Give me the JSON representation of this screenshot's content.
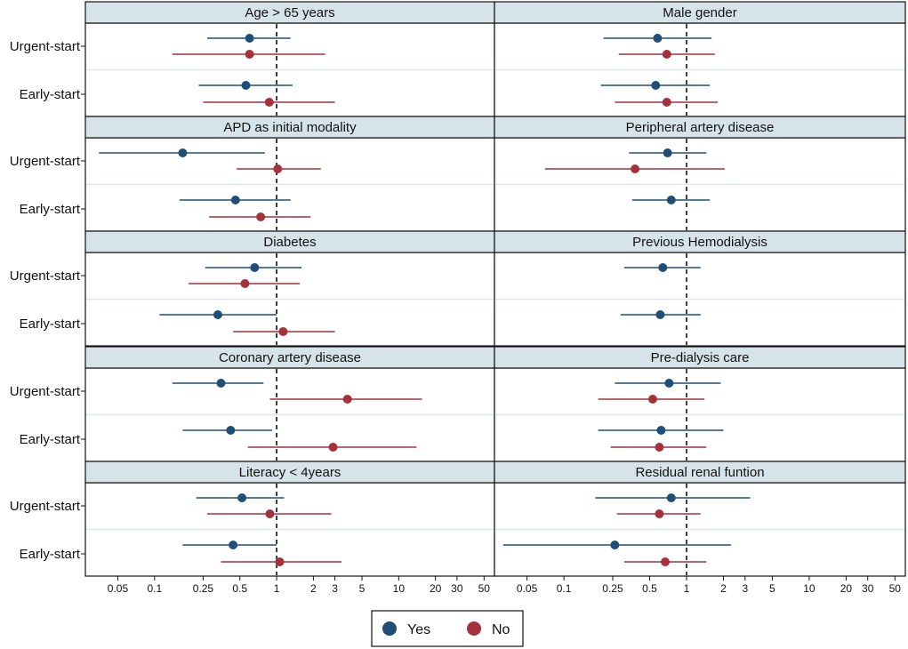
{
  "chart_data": {
    "type": "forest",
    "x_scale": "log",
    "xlim": [
      0.03,
      55
    ],
    "reference_line": 1,
    "x_ticks": [
      {
        "v": 0.05,
        "label": "0.05"
      },
      {
        "v": 0.1,
        "label": "0.1"
      },
      {
        "v": 0.25,
        "label": "0.25"
      },
      {
        "v": 0.5,
        "label": "0.5"
      },
      {
        "v": 1,
        "label": "1"
      },
      {
        "v": 2,
        "label": "2"
      },
      {
        "v": 3,
        "label": "3"
      },
      {
        "v": 5,
        "label": "5"
      },
      {
        "v": 10,
        "label": "10"
      },
      {
        "v": 20,
        "label": "20"
      },
      {
        "v": 30,
        "label": "30"
      },
      {
        "v": 50,
        "label": "50"
      }
    ],
    "row_labels": [
      "Urgent-start",
      "Early-start"
    ],
    "legend": [
      {
        "key": "yes",
        "label": "Yes",
        "color": "#1f4e79"
      },
      {
        "key": "no",
        "label": "No",
        "color": "#a5313a"
      }
    ],
    "panels": [
      {
        "title": "Age > 65 years",
        "rows": [
          {
            "group": "Urgent-start",
            "estimates": [
              {
                "key": "yes",
                "est": 0.6,
                "lo": 0.27,
                "hi": 1.3
              },
              {
                "key": "no",
                "est": 0.6,
                "lo": 0.14,
                "hi": 2.5
              }
            ]
          },
          {
            "group": "Early-start",
            "estimates": [
              {
                "key": "yes",
                "est": 0.56,
                "lo": 0.23,
                "hi": 1.35
              },
              {
                "key": "no",
                "est": 0.87,
                "lo": 0.25,
                "hi": 3.0
              }
            ]
          }
        ]
      },
      {
        "title": "Male gender",
        "rows": [
          {
            "group": "Urgent-start",
            "estimates": [
              {
                "key": "yes",
                "est": 0.58,
                "lo": 0.21,
                "hi": 1.6
              },
              {
                "key": "no",
                "est": 0.69,
                "lo": 0.28,
                "hi": 1.7
              }
            ]
          },
          {
            "group": "Early-start",
            "estimates": [
              {
                "key": "yes",
                "est": 0.56,
                "lo": 0.2,
                "hi": 1.55
              },
              {
                "key": "no",
                "est": 0.69,
                "lo": 0.26,
                "hi": 1.8
              }
            ]
          }
        ]
      },
      {
        "title": "APD as initial modality",
        "rows": [
          {
            "group": "Urgent-start",
            "estimates": [
              {
                "key": "yes",
                "est": 0.17,
                "lo": 0.035,
                "hi": 0.8
              },
              {
                "key": "no",
                "est": 1.02,
                "lo": 0.47,
                "hi": 2.3
              }
            ]
          },
          {
            "group": "Early-start",
            "estimates": [
              {
                "key": "yes",
                "est": 0.46,
                "lo": 0.16,
                "hi": 1.3
              },
              {
                "key": "no",
                "est": 0.74,
                "lo": 0.28,
                "hi": 1.9
              }
            ]
          }
        ]
      },
      {
        "title": "Peripheral artery disease",
        "rows": [
          {
            "group": "Urgent-start",
            "estimates": [
              {
                "key": "yes",
                "est": 0.7,
                "lo": 0.34,
                "hi": 1.45
              },
              {
                "key": "no",
                "est": 0.38,
                "lo": 0.07,
                "hi": 2.05
              }
            ]
          },
          {
            "group": "Early-start",
            "estimates": [
              {
                "key": "yes",
                "est": 0.75,
                "lo": 0.36,
                "hi": 1.55
              }
            ]
          }
        ]
      },
      {
        "title": "Diabetes",
        "rows": [
          {
            "group": "Urgent-start",
            "estimates": [
              {
                "key": "yes",
                "est": 0.66,
                "lo": 0.26,
                "hi": 1.6
              },
              {
                "key": "no",
                "est": 0.55,
                "lo": 0.19,
                "hi": 1.55
              }
            ]
          },
          {
            "group": "Early-start",
            "estimates": [
              {
                "key": "yes",
                "est": 0.33,
                "lo": 0.11,
                "hi": 1.0
              },
              {
                "key": "no",
                "est": 1.13,
                "lo": 0.44,
                "hi": 3.0
              }
            ]
          }
        ]
      },
      {
        "title": "Previous Hemodialysis",
        "rows": [
          {
            "group": "Urgent-start",
            "estimates": [
              {
                "key": "yes",
                "est": 0.64,
                "lo": 0.31,
                "hi": 1.3
              }
            ]
          },
          {
            "group": "Early-start",
            "estimates": [
              {
                "key": "yes",
                "est": 0.61,
                "lo": 0.29,
                "hi": 1.3
              }
            ]
          }
        ]
      },
      {
        "title": "Coronary artery disease",
        "rows": [
          {
            "group": "Urgent-start",
            "estimates": [
              {
                "key": "yes",
                "est": 0.35,
                "lo": 0.14,
                "hi": 0.78
              },
              {
                "key": "no",
                "est": 3.8,
                "lo": 0.88,
                "hi": 15.5
              }
            ]
          },
          {
            "group": "Early-start",
            "estimates": [
              {
                "key": "yes",
                "est": 0.42,
                "lo": 0.17,
                "hi": 0.92
              },
              {
                "key": "no",
                "est": 2.9,
                "lo": 0.58,
                "hi": 14.0
              }
            ]
          }
        ]
      },
      {
        "title": "Pre-dialysis care",
        "rows": [
          {
            "group": "Urgent-start",
            "estimates": [
              {
                "key": "yes",
                "est": 0.72,
                "lo": 0.26,
                "hi": 1.9
              },
              {
                "key": "no",
                "est": 0.53,
                "lo": 0.19,
                "hi": 1.4
              }
            ]
          },
          {
            "group": "Early-start",
            "estimates": [
              {
                "key": "yes",
                "est": 0.62,
                "lo": 0.19,
                "hi": 2.0
              },
              {
                "key": "no",
                "est": 0.6,
                "lo": 0.24,
                "hi": 1.45
              }
            ]
          }
        ]
      },
      {
        "title": "Literacy < 4years",
        "rows": [
          {
            "group": "Urgent-start",
            "estimates": [
              {
                "key": "yes",
                "est": 0.52,
                "lo": 0.22,
                "hi": 1.15
              },
              {
                "key": "no",
                "est": 0.88,
                "lo": 0.27,
                "hi": 2.8
              }
            ]
          },
          {
            "group": "Early-start",
            "estimates": [
              {
                "key": "yes",
                "est": 0.44,
                "lo": 0.17,
                "hi": 1.0
              },
              {
                "key": "no",
                "est": 1.06,
                "lo": 0.35,
                "hi": 3.4
              }
            ]
          }
        ]
      },
      {
        "title": "Residual renal funtion",
        "rows": [
          {
            "group": "Urgent-start",
            "estimates": [
              {
                "key": "yes",
                "est": 0.75,
                "lo": 0.18,
                "hi": 3.3
              },
              {
                "key": "no",
                "est": 0.6,
                "lo": 0.27,
                "hi": 1.3
              }
            ]
          },
          {
            "group": "Early-start",
            "estimates": [
              {
                "key": "yes",
                "est": 0.26,
                "lo": 0.032,
                "hi": 2.3
              },
              {
                "key": "no",
                "est": 0.67,
                "lo": 0.31,
                "hi": 1.45
              }
            ]
          }
        ]
      }
    ]
  }
}
